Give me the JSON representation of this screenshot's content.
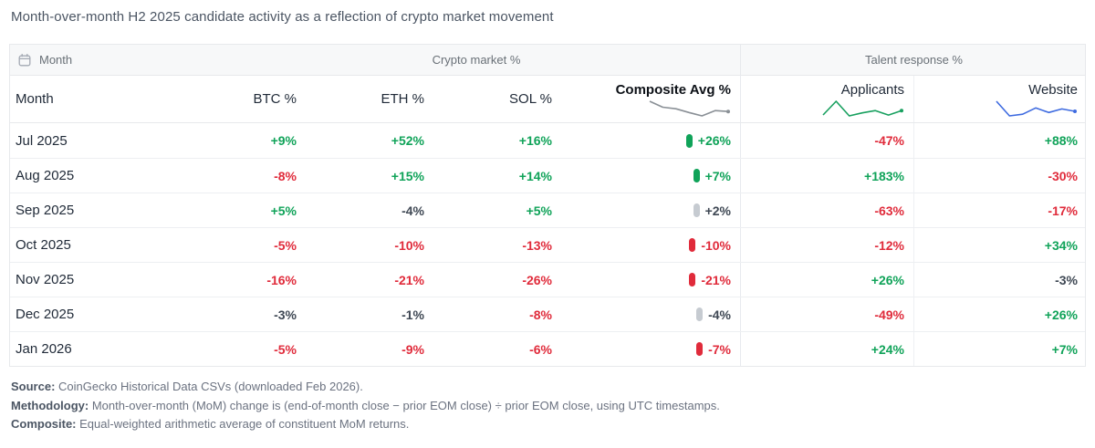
{
  "title": "Month-over-month H2 2025 candidate activity as a reflection of crypto market movement",
  "colors": {
    "positive": "#10a359",
    "negative": "#e02b3b",
    "neutral": "#3f4854",
    "composite_sparkline": "#8a9096",
    "applicants_sparkline": "#18a05f",
    "website_sparkline": "#3e6be0"
  },
  "table": {
    "band": {
      "month_label": "Month",
      "crypto_label": "Crypto market %",
      "talent_label": "Talent response %"
    },
    "columns": [
      {
        "key": "month",
        "label": "Month",
        "align": "left"
      },
      {
        "key": "btc",
        "label": "BTC %"
      },
      {
        "key": "eth",
        "label": "ETH %"
      },
      {
        "key": "sol",
        "label": "SOL %"
      },
      {
        "key": "composite",
        "label": "Composite Avg %",
        "bold": true,
        "sparkline": {
          "color": "#8a9096",
          "values": [
            26,
            7,
            2,
            -10,
            -21,
            -4,
            -7
          ]
        }
      },
      {
        "key": "applicants",
        "label": "Applicants",
        "sparkline": {
          "color": "#18a05f",
          "values": [
            -47,
            183,
            -63,
            -12,
            26,
            -49,
            24
          ]
        }
      },
      {
        "key": "website",
        "label": "Website",
        "sparkline": {
          "color": "#3e6be0",
          "values": [
            88,
            -30,
            -17,
            34,
            -3,
            26,
            7
          ]
        }
      }
    ],
    "rows": [
      {
        "month": "Jul 2025",
        "cells": [
          {
            "text": "+9%",
            "tone": "pos"
          },
          {
            "text": "+52%",
            "tone": "pos"
          },
          {
            "text": "+16%",
            "tone": "pos"
          },
          {
            "text": "+26%",
            "tone": "pos"
          },
          {
            "text": "-47%",
            "tone": "neg"
          },
          {
            "text": "+88%",
            "tone": "pos"
          }
        ]
      },
      {
        "month": "Aug 2025",
        "cells": [
          {
            "text": "-8%",
            "tone": "neg"
          },
          {
            "text": "+15%",
            "tone": "pos"
          },
          {
            "text": "+14%",
            "tone": "pos"
          },
          {
            "text": "+7%",
            "tone": "pos"
          },
          {
            "text": "+183%",
            "tone": "pos"
          },
          {
            "text": "-30%",
            "tone": "neg"
          }
        ]
      },
      {
        "month": "Sep 2025",
        "cells": [
          {
            "text": "+5%",
            "tone": "pos"
          },
          {
            "text": "-4%",
            "tone": "neutral"
          },
          {
            "text": "+5%",
            "tone": "pos"
          },
          {
            "text": "+2%",
            "tone": "neutral"
          },
          {
            "text": "-63%",
            "tone": "neg"
          },
          {
            "text": "-17%",
            "tone": "neg"
          }
        ]
      },
      {
        "month": "Oct 2025",
        "cells": [
          {
            "text": "-5%",
            "tone": "neg"
          },
          {
            "text": "-10%",
            "tone": "neg"
          },
          {
            "text": "-13%",
            "tone": "neg"
          },
          {
            "text": "-10%",
            "tone": "neg"
          },
          {
            "text": "-12%",
            "tone": "neg"
          },
          {
            "text": "+34%",
            "tone": "pos"
          }
        ]
      },
      {
        "month": "Nov 2025",
        "cells": [
          {
            "text": "-16%",
            "tone": "neg"
          },
          {
            "text": "-21%",
            "tone": "neg"
          },
          {
            "text": "-26%",
            "tone": "neg"
          },
          {
            "text": "-21%",
            "tone": "neg"
          },
          {
            "text": "+26%",
            "tone": "pos"
          },
          {
            "text": "-3%",
            "tone": "neutral"
          }
        ]
      },
      {
        "month": "Dec 2025",
        "cells": [
          {
            "text": "-3%",
            "tone": "neutral"
          },
          {
            "text": "-1%",
            "tone": "neutral"
          },
          {
            "text": "-8%",
            "tone": "neg"
          },
          {
            "text": "-4%",
            "tone": "neutral"
          },
          {
            "text": "-49%",
            "tone": "neg"
          },
          {
            "text": "+26%",
            "tone": "pos"
          }
        ]
      },
      {
        "month": "Jan 2026",
        "cells": [
          {
            "text": "-5%",
            "tone": "neg"
          },
          {
            "text": "-9%",
            "tone": "neg"
          },
          {
            "text": "-6%",
            "tone": "neg"
          },
          {
            "text": "-7%",
            "tone": "neg"
          },
          {
            "text": "+24%",
            "tone": "pos"
          },
          {
            "text": "+7%",
            "tone": "pos"
          }
        ]
      }
    ]
  },
  "footnotes": [
    {
      "label": "Source:",
      "text": " CoinGecko Historical Data CSVs (downloaded Feb 2026)."
    },
    {
      "label": "Methodology:",
      "text": " Month-over-month (MoM) change is (end-of-month close − prior EOM close) ÷ prior EOM close, using UTC timestamps."
    },
    {
      "label": "Composite:",
      "text": " Equal-weighted arithmetic average of constituent MoM returns."
    }
  ],
  "chart_data": {
    "type": "table",
    "title": "Month-over-month H2 2025 candidate activity as a reflection of crypto market movement",
    "categories": [
      "Jul 2025",
      "Aug 2025",
      "Sep 2025",
      "Oct 2025",
      "Nov 2025",
      "Dec 2025",
      "Jan 2026"
    ],
    "series": [
      {
        "name": "BTC %",
        "group": "Crypto market %",
        "values": [
          9,
          -8,
          5,
          -5,
          -16,
          -3,
          -5
        ]
      },
      {
        "name": "ETH %",
        "group": "Crypto market %",
        "values": [
          52,
          15,
          -4,
          -10,
          -21,
          -1,
          -9
        ]
      },
      {
        "name": "SOL %",
        "group": "Crypto market %",
        "values": [
          16,
          14,
          5,
          -13,
          -26,
          -8,
          -6
        ]
      },
      {
        "name": "Composite Avg %",
        "group": "Crypto market %",
        "values": [
          26,
          7,
          2,
          -10,
          -21,
          -4,
          -7
        ]
      },
      {
        "name": "Applicants",
        "group": "Talent response %",
        "values": [
          -47,
          183,
          -63,
          -12,
          26,
          -49,
          24
        ]
      },
      {
        "name": "Website",
        "group": "Talent response %",
        "values": [
          88,
          -30,
          -17,
          34,
          -3,
          26,
          7
        ]
      }
    ],
    "units": "percent MoM change"
  }
}
